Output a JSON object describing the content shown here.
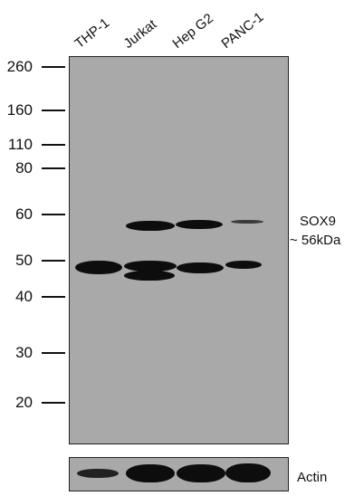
{
  "lanes": [
    "THP-1",
    "Jurkat",
    "Hep G2",
    "PANC-1"
  ],
  "markers": [
    "260",
    "160",
    "110",
    "80",
    "60",
    "50",
    "40",
    "30",
    "20"
  ],
  "annotation": {
    "protein": "SOX9",
    "size": "~ 56kDa"
  },
  "loading_control": "Actin",
  "colors": {
    "membrane": "#a9a9a9",
    "band": "#0d0d0d",
    "text": "#111111"
  }
}
